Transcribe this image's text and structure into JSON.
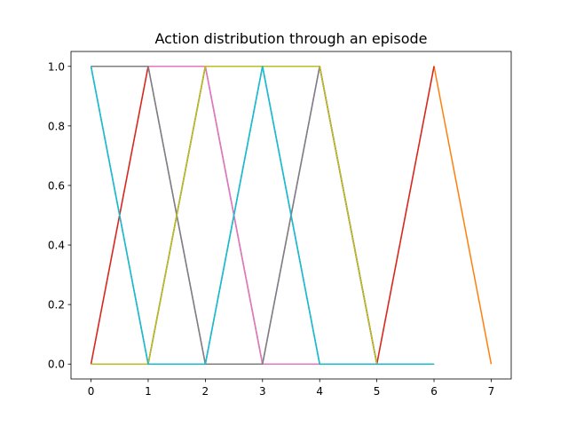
{
  "chart_data": {
    "type": "line",
    "title": "Action distribution through an episode",
    "xlabel": "",
    "ylabel": "",
    "xlim": [
      -0.35,
      7.35
    ],
    "ylim": [
      -0.05,
      1.05
    ],
    "xticks": [
      0,
      1,
      2,
      3,
      4,
      5,
      6,
      7
    ],
    "yticks": [
      0.0,
      0.2,
      0.4,
      0.6,
      0.8,
      1.0
    ],
    "grid": false,
    "series": [
      {
        "color": "#1f77b4",
        "x": [
          0,
          1,
          2,
          3,
          4,
          5,
          6
        ],
        "y": [
          1,
          0,
          0,
          1,
          0,
          0,
          0
        ]
      },
      {
        "color": "#ff7f0e",
        "x": [
          0,
          1,
          2,
          3,
          4,
          5,
          6,
          7
        ],
        "y": [
          0,
          1,
          1,
          1,
          1,
          0,
          1,
          0
        ]
      },
      {
        "color": "#2ca02c",
        "x": [
          0,
          1,
          2,
          3,
          4,
          5,
          6
        ],
        "y": [
          0,
          0,
          1,
          1,
          1,
          0,
          0
        ]
      },
      {
        "color": "#d62728",
        "x": [
          0,
          1,
          2,
          3,
          4,
          5,
          6
        ],
        "y": [
          0,
          1,
          1,
          1,
          1,
          0,
          1
        ]
      },
      {
        "color": "#9467bd",
        "x": [
          0,
          1,
          2,
          3,
          4,
          5,
          6
        ],
        "y": [
          1,
          1,
          0,
          0,
          1,
          0,
          0
        ]
      },
      {
        "color": "#8c564b",
        "x": [
          0,
          1,
          2,
          3,
          4,
          5,
          6
        ],
        "y": [
          0,
          0,
          1,
          0,
          0,
          0,
          0
        ]
      },
      {
        "color": "#e377c2",
        "x": [
          0,
          1,
          2,
          3,
          4,
          5,
          6
        ],
        "y": [
          1,
          1,
          1,
          0,
          0,
          0,
          0
        ]
      },
      {
        "color": "#7f7f7f",
        "x": [
          0,
          1,
          2,
          3,
          4,
          5,
          6
        ],
        "y": [
          1,
          1,
          0,
          0,
          1,
          0,
          0
        ]
      },
      {
        "color": "#bcbd22",
        "x": [
          0,
          1,
          2,
          3,
          4,
          5,
          6
        ],
        "y": [
          0,
          0,
          1,
          1,
          1,
          0,
          0
        ]
      },
      {
        "color": "#17becf",
        "x": [
          0,
          1,
          2,
          3,
          4,
          5,
          6
        ],
        "y": [
          1,
          0,
          0,
          1,
          0,
          0,
          0
        ]
      }
    ]
  }
}
